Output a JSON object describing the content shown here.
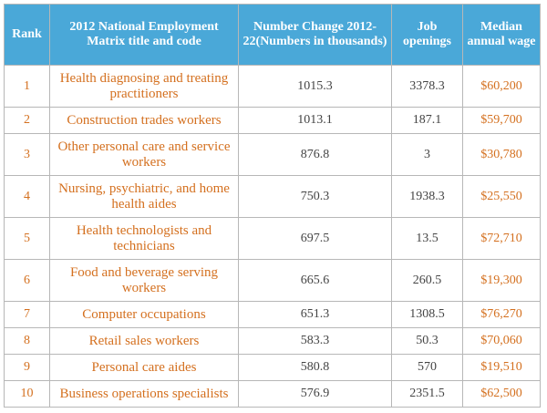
{
  "table": {
    "headers": [
      "Rank",
      "2012 National Employment Matrix title and code",
      "Number Change 2012-22(Numbers in thousands)",
      "Job openings",
      "Median annual wage"
    ],
    "rows": [
      {
        "rank": "1",
        "title": "Health diagnosing and treating practitioners",
        "change": "1015.3",
        "openings": "3378.3",
        "wage": "$60,200"
      },
      {
        "rank": "2",
        "title": "Construction trades workers",
        "change": "1013.1",
        "openings": "187.1",
        "wage": "$59,700"
      },
      {
        "rank": "3",
        "title": "Other personal care and service workers",
        "change": "876.8",
        "openings": "3",
        "wage": "$30,780"
      },
      {
        "rank": "4",
        "title": "Nursing, psychiatric, and home health aides",
        "change": "750.3",
        "openings": "1938.3",
        "wage": "$25,550"
      },
      {
        "rank": "5",
        "title": "Health technologists and technicians",
        "change": "697.5",
        "openings": "13.5",
        "wage": "$72,710"
      },
      {
        "rank": "6",
        "title": "Food and beverage serving workers",
        "change": "665.6",
        "openings": "260.5",
        "wage": "$19,300"
      },
      {
        "rank": "7",
        "title": "Computer occupations",
        "change": "651.3",
        "openings": "1308.5",
        "wage": "$76,270"
      },
      {
        "rank": "8",
        "title": "Retail sales workers",
        "change": "583.3",
        "openings": "50.3",
        "wage": "$70,060"
      },
      {
        "rank": "9",
        "title": "Personal care aides",
        "change": "580.8",
        "openings": "570",
        "wage": "$19,510"
      },
      {
        "rank": "10",
        "title": "Business operations specialists",
        "change": "576.9",
        "openings": "2351.5",
        "wage": "$62,500"
      }
    ]
  },
  "colors": {
    "header_bg": "#4aa8d8",
    "header_text": "#ffffff",
    "accent_text": "#d4701f",
    "number_text": "#444444",
    "border": "#b7b7b7"
  }
}
